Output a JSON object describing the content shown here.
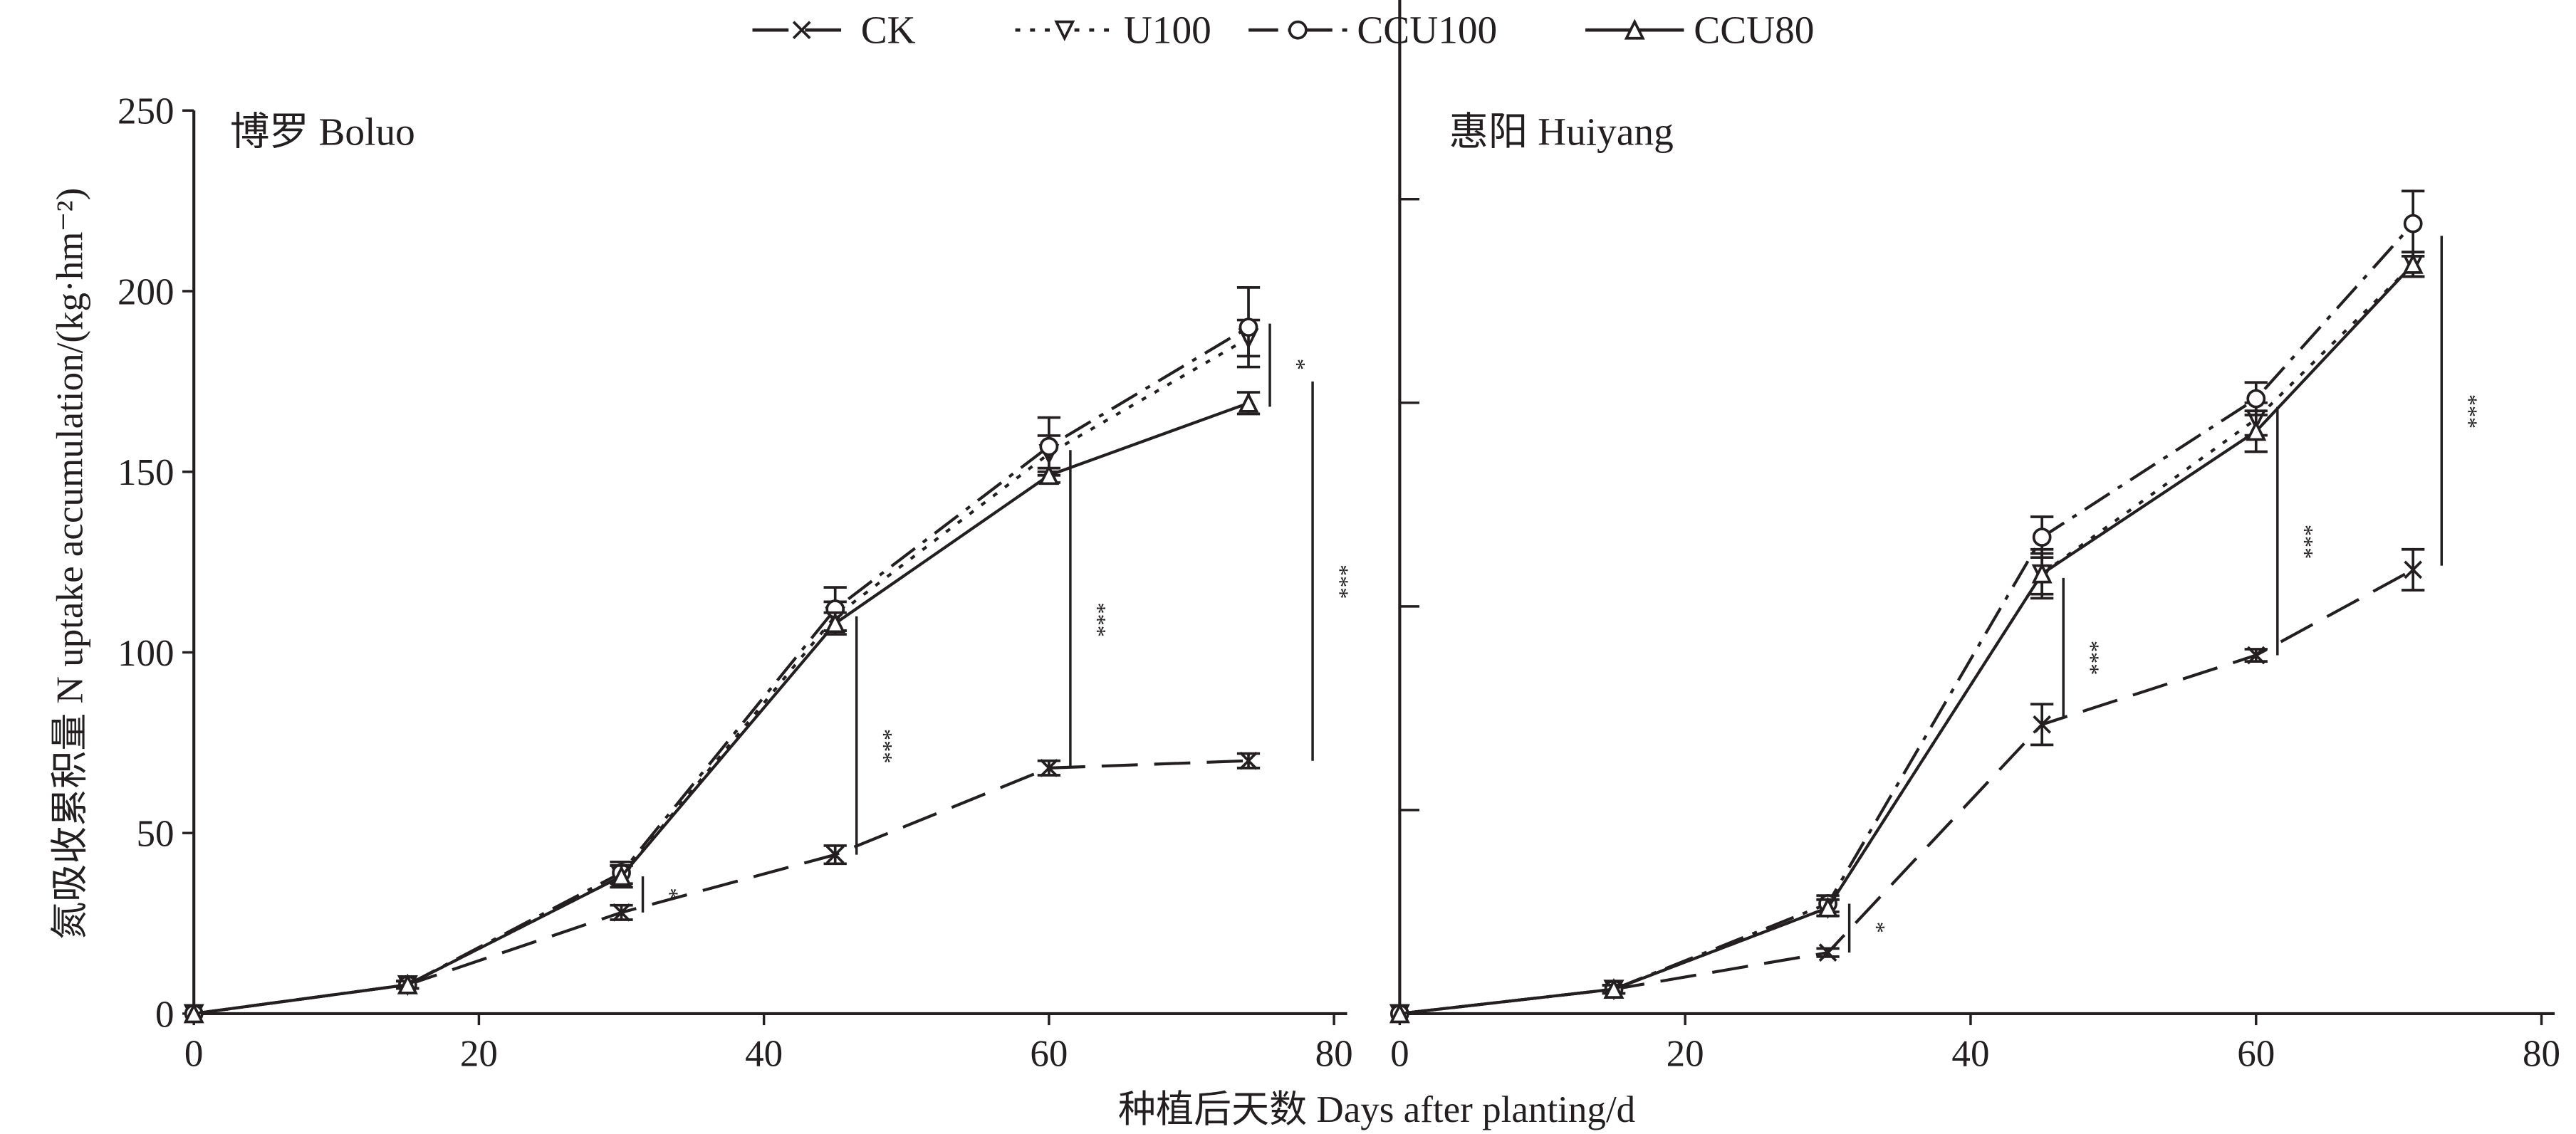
{
  "chart_data": {
    "type": "line",
    "legend": {
      "placement": "top-center",
      "entries": [
        {
          "name": "CK",
          "marker": "x",
          "dash": "long-dash"
        },
        {
          "name": "U100",
          "marker": "triangle-down",
          "dash": "dotted"
        },
        {
          "name": "CCU100",
          "marker": "circle",
          "dash": "dash-dot"
        },
        {
          "name": "CCU80",
          "marker": "triangle-up",
          "dash": "solid"
        }
      ]
    },
    "ylabel": "氮吸收累积量  N uptake accumulation/(kg·hm⁻²)",
    "xlabel": "种植后天数  Days after planting/d",
    "color": "#231f20",
    "panels": [
      {
        "title": "博罗  Boluo",
        "xlim": [
          0,
          80
        ],
        "ylim": [
          0,
          250
        ],
        "xticks": [
          0,
          20,
          40,
          60,
          80
        ],
        "yticks": [
          0,
          50,
          100,
          150,
          200,
          250
        ],
        "ytick_labels_shown": true,
        "x": [
          0,
          15,
          30,
          45,
          60,
          74
        ],
        "series": [
          {
            "name": "CK",
            "values": [
              0,
              8,
              28,
              44,
              68,
              70
            ],
            "err": [
              0,
              1,
              2,
              2.5,
              2,
              2
            ]
          },
          {
            "name": "U100",
            "values": [
              0,
              8,
              38,
              110,
              155,
              187
            ],
            "err": [
              0,
              1,
              3,
              4,
              5,
              5
            ]
          },
          {
            "name": "CCU100",
            "values": [
              0,
              8,
              39,
              112,
              157,
              190
            ],
            "err": [
              0,
              1,
              3,
              6,
              8,
              11
            ]
          },
          {
            "name": "CCU80",
            "values": [
              0,
              8,
              38,
              108,
              149,
              169
            ],
            "err": [
              0,
              1,
              3,
              3,
              2,
              3
            ]
          }
        ],
        "significance": [
          {
            "x": 31.5,
            "y_range": [
              28,
              38
            ],
            "label": "*"
          },
          {
            "x": 46.5,
            "y_range": [
              44,
              110
            ],
            "label": "***"
          },
          {
            "x": 61.5,
            "y_range": [
              68,
              156
            ],
            "label": "***"
          },
          {
            "x": 75.5,
            "y_range": [
              168,
              191
            ],
            "label": "*"
          },
          {
            "x": 78.5,
            "y_range": [
              70,
              175
            ],
            "label": "***"
          }
        ]
      },
      {
        "title": "惠阳    Huiyang",
        "xlim": [
          0,
          80
        ],
        "ylim": [
          0,
          250
        ],
        "xticks": [
          0,
          20,
          40,
          60,
          80
        ],
        "yticks": [
          0,
          50,
          100,
          150,
          200
        ],
        "ytick_labels_shown": false,
        "x": [
          0,
          15,
          30,
          45,
          60,
          71
        ],
        "series": [
          {
            "name": "CK",
            "values": [
              0,
              6,
              15,
              71,
              88,
              109
            ],
            "err": [
              0,
              1,
              1,
              5,
              1.5,
              5
            ]
          },
          {
            "name": "U100",
            "values": [
              0,
              6,
              26,
              108,
              146,
              184
            ],
            "err": [
              0,
              1,
              2,
              5,
              4,
              3
            ]
          },
          {
            "name": "CCU100",
            "values": [
              0,
              6,
              27,
              117,
              151,
              194
            ],
            "err": [
              0,
              1,
              2,
              5,
              4,
              8
            ]
          },
          {
            "name": "CCU80",
            "values": [
              0,
              6,
              26,
              108,
              143,
              184
            ],
            "err": [
              0,
              1,
              2,
              6,
              5,
              3
            ]
          }
        ],
        "significance": [
          {
            "x": 31.5,
            "y_range": [
              15,
              27
            ],
            "label": "*"
          },
          {
            "x": 46.5,
            "y_range": [
              73,
              107
            ],
            "label": "***"
          },
          {
            "x": 61.5,
            "y_range": [
              88,
              149
            ],
            "label": "***"
          },
          {
            "x": 73,
            "y_range": [
              110,
              191
            ],
            "label": "***"
          }
        ]
      }
    ]
  }
}
